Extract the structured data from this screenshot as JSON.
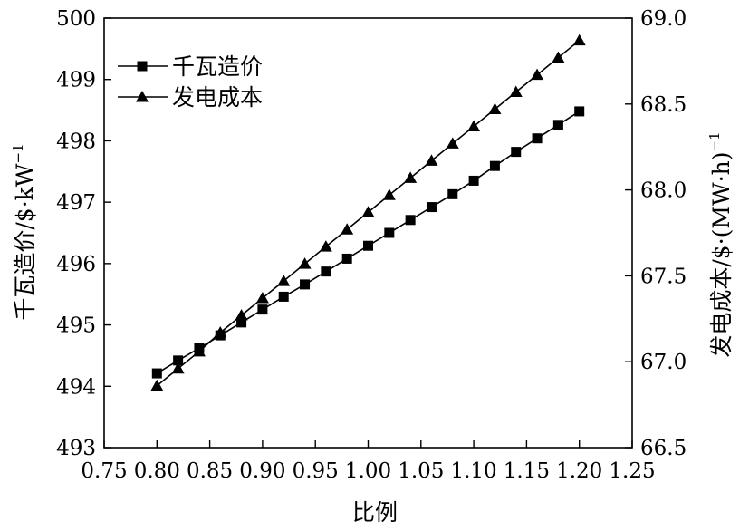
{
  "chart_data": {
    "type": "line",
    "xlabel": "比例",
    "ylabel_left": "千瓦造价/$·kW",
    "ylabel_left_sup": "−1",
    "ylabel_right": "发电成本/$·(MW·h)",
    "ylabel_right_sup": "−1",
    "xlim": [
      0.75,
      1.25
    ],
    "ylim_left": [
      493,
      500
    ],
    "ylim_right": [
      66.5,
      69.0
    ],
    "x_ticks": [
      "0.75",
      "0.80",
      "0.85",
      "0.90",
      "0.95",
      "1.00",
      "1.05",
      "1.10",
      "1.15",
      "1.20",
      "1.25"
    ],
    "y_left_ticks": [
      "493",
      "494",
      "495",
      "496",
      "497",
      "498",
      "499",
      "500"
    ],
    "y_right_ticks": [
      "66.5",
      "67.0",
      "67.5",
      "68.0",
      "68.5",
      "69.0"
    ],
    "grid": false,
    "legend_position": "top-left",
    "line_color": "#000000",
    "series": [
      {
        "name": "千瓦造价",
        "axis": "left",
        "marker": "square",
        "x": [
          0.8,
          0.82,
          0.84,
          0.86,
          0.88,
          0.9,
          0.92,
          0.94,
          0.96,
          0.98,
          1.0,
          1.02,
          1.04,
          1.06,
          1.08,
          1.1,
          1.12,
          1.14,
          1.16,
          1.18,
          1.2
        ],
        "values": [
          494.21,
          494.42,
          494.62,
          494.83,
          495.04,
          495.25,
          495.46,
          495.66,
          495.87,
          496.08,
          496.29,
          496.5,
          496.71,
          496.92,
          497.13,
          497.35,
          497.59,
          497.82,
          498.04,
          498.26,
          498.48
        ]
      },
      {
        "name": "发电成本",
        "axis": "right",
        "marker": "triangle",
        "x": [
          0.8,
          0.82,
          0.84,
          0.86,
          0.88,
          0.9,
          0.92,
          0.94,
          0.96,
          0.98,
          1.0,
          1.02,
          1.04,
          1.06,
          1.08,
          1.1,
          1.12,
          1.14,
          1.16,
          1.18,
          1.2
        ],
        "values": [
          66.86,
          66.96,
          67.06,
          67.17,
          67.27,
          67.37,
          67.47,
          67.57,
          67.67,
          67.77,
          67.87,
          67.97,
          68.07,
          68.17,
          68.27,
          68.37,
          68.47,
          68.57,
          68.67,
          68.77,
          68.87
        ]
      }
    ]
  }
}
